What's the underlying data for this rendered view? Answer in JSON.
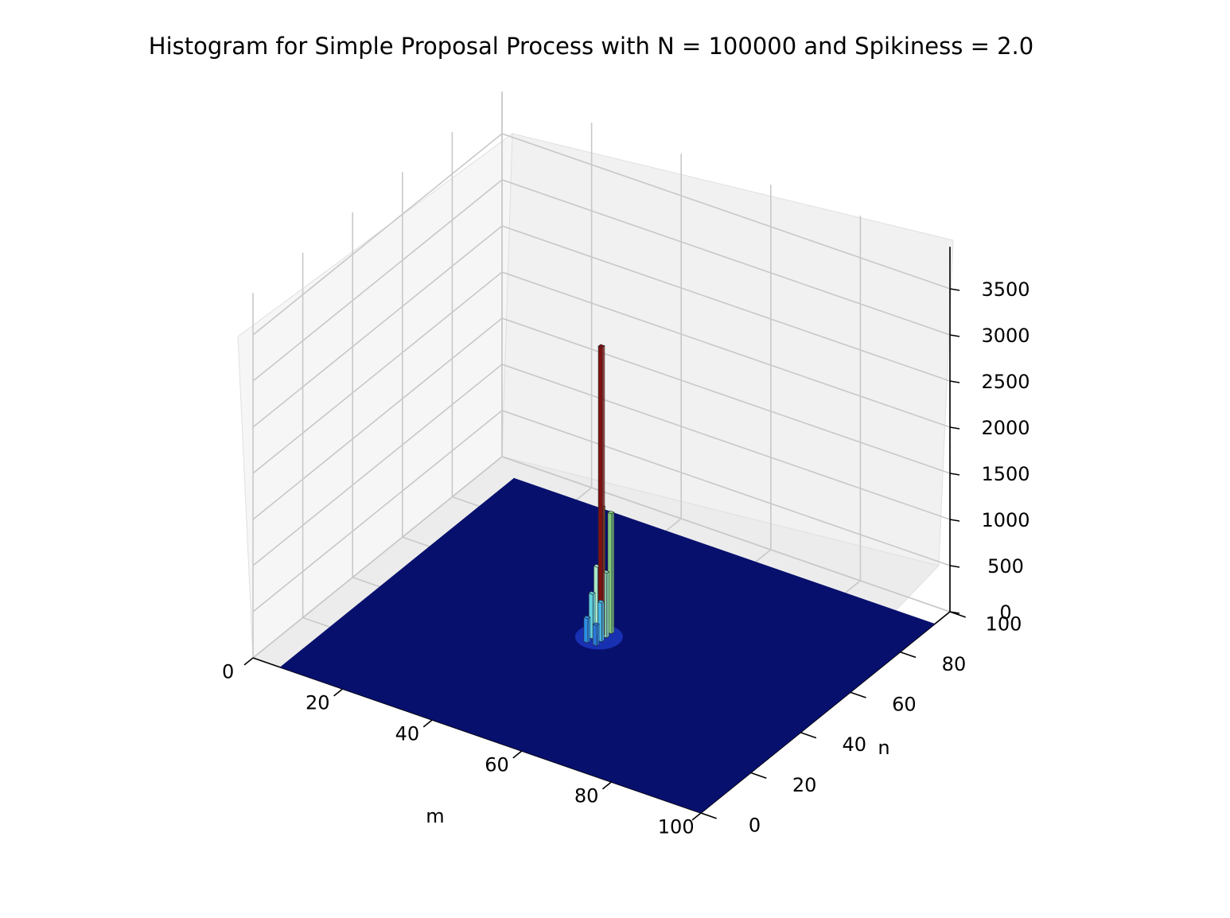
{
  "chart_data": {
    "type": "bar3d",
    "title": "Histogram for Simple Proposal Process with N = 100000 and Spikiness = 2.0",
    "xlabel": "m",
    "ylabel": "n",
    "zlabel": "",
    "xlim": [
      0,
      100
    ],
    "ylim": [
      0,
      100
    ],
    "zlim": [
      0,
      3500
    ],
    "x_ticks": [
      "0",
      "20",
      "40",
      "60",
      "80",
      "100"
    ],
    "y_ticks": [
      "0",
      "20",
      "40",
      "60",
      "80",
      "100"
    ],
    "z_ticks": [
      "0",
      "500",
      "1000",
      "1500",
      "2000",
      "2500",
      "3000",
      "3500"
    ],
    "grid": true,
    "colormap": "jet",
    "floor_color": "#08106e",
    "bars": [
      {
        "m": 49,
        "n": 52,
        "count": 1330,
        "color": "#8fd67a"
      },
      {
        "m": 51,
        "n": 52,
        "count": 1300,
        "color": "#7fc97f"
      },
      {
        "m": 49,
        "n": 50,
        "count": 730,
        "color": "#a6e6c8"
      },
      {
        "m": 51,
        "n": 50,
        "count": 700,
        "color": "#8ad3b5"
      },
      {
        "m": 49,
        "n": 48,
        "count": 480,
        "color": "#5fd0e0"
      },
      {
        "m": 51,
        "n": 48,
        "count": 420,
        "color": "#45b3e6"
      },
      {
        "m": 49,
        "n": 46,
        "count": 260,
        "color": "#2c8fe6"
      },
      {
        "m": 51,
        "n": 46,
        "count": 220,
        "color": "#2a78d8"
      },
      {
        "m": 50,
        "n": 50,
        "count": 3130,
        "color": "#801010"
      }
    ]
  }
}
